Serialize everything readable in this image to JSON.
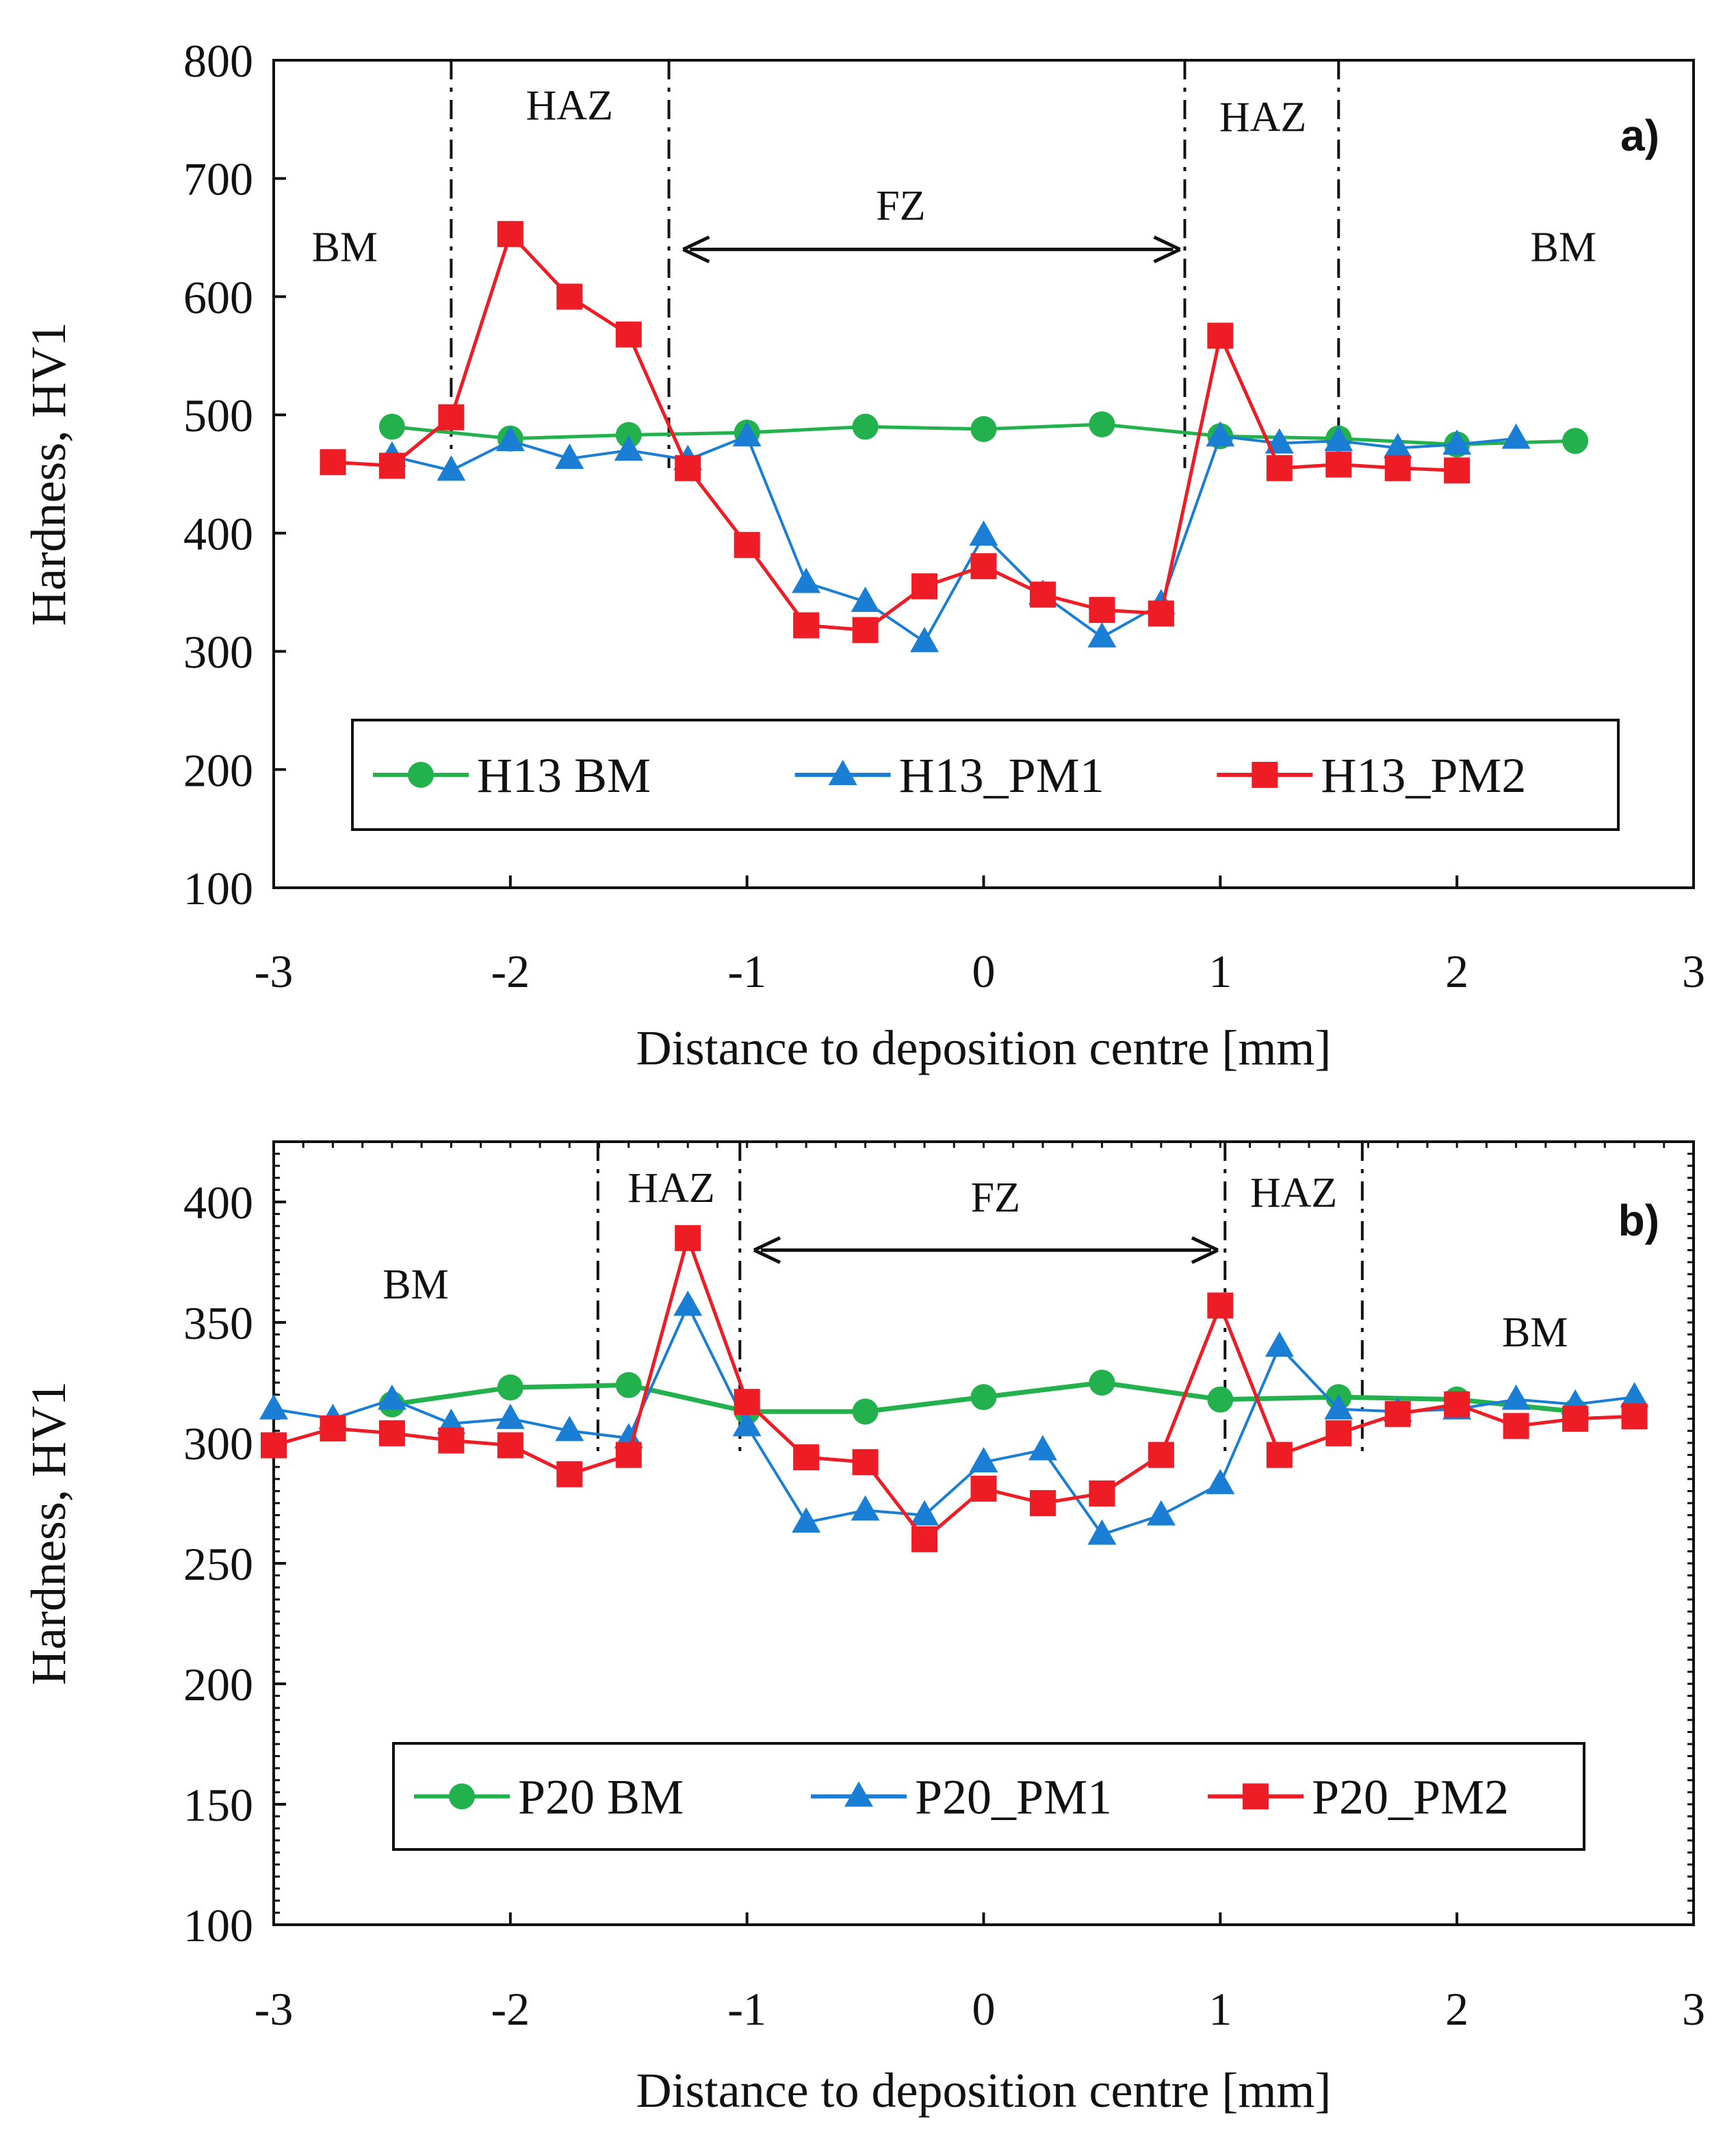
{
  "chart_data": [
    {
      "type": "line",
      "panel_label": "a)",
      "xlabel": "Distance to deposition centre [mm]",
      "ylabel": "Hardness, HV1",
      "xlim": [
        -3,
        3
      ],
      "ylim": [
        100,
        800
      ],
      "xticks": [
        -3,
        -2,
        -1,
        0,
        1,
        2,
        3
      ],
      "yticks": [
        100,
        200,
        300,
        400,
        500,
        600,
        700,
        800
      ],
      "x_tick_labels": [
        "-3",
        "-2",
        "-1",
        "0",
        "1",
        "2",
        "3"
      ],
      "y_tick_labels": [
        "100",
        "200",
        "300",
        "400",
        "500",
        "600",
        "700",
        "800"
      ],
      "zone_boundaries": [
        -2.25,
        -1.33,
        0.85,
        1.5
      ],
      "zone_labels": [
        {
          "text": "BM",
          "x": -2.7,
          "y": 630
        },
        {
          "text": "HAZ",
          "x": -1.75,
          "y": 750
        },
        {
          "text": "FZ",
          "x": -0.35,
          "y": 665
        },
        {
          "text": "HAZ",
          "x": 1.18,
          "y": 740
        },
        {
          "text": "BM",
          "x": 2.45,
          "y": 630
        }
      ],
      "fz_arrow": {
        "x1": -1.27,
        "x2": 0.83,
        "y": 640
      },
      "legend_position": "bottom-center",
      "series": [
        {
          "name": "H13 BM",
          "color": "#22b14c",
          "marker": "circle",
          "x": [
            -2.5,
            -2.0,
            -1.5,
            -1.0,
            -0.5,
            0.0,
            0.5,
            1.0,
            1.5,
            2.0,
            2.5
          ],
          "y": [
            490,
            480,
            483,
            485,
            490,
            488,
            492,
            482,
            480,
            475,
            478
          ]
        },
        {
          "name": "H13_PM1",
          "color": "#1a7fd4",
          "marker": "triangle",
          "x": [
            -2.5,
            -2.25,
            -2.0,
            -1.75,
            -1.5,
            -1.25,
            -1.0,
            -0.75,
            -0.5,
            -0.25,
            0.0,
            0.25,
            0.5,
            0.75,
            1.0,
            1.25,
            1.5,
            1.75,
            2.0,
            2.25
          ],
          "y": [
            465,
            453,
            478,
            463,
            470,
            462,
            482,
            358,
            342,
            308,
            398,
            348,
            312,
            340,
            482,
            476,
            478,
            472,
            475,
            480
          ]
        },
        {
          "name": "H13_PM2",
          "color": "#ee1c24",
          "marker": "square",
          "x": [
            -2.75,
            -2.5,
            -2.25,
            -2.0,
            -1.75,
            -1.5,
            -1.25,
            -1.0,
            -0.75,
            -0.5,
            -0.25,
            0.0,
            0.25,
            0.5,
            0.75,
            1.0,
            1.25,
            1.5,
            1.75,
            2.0
          ],
          "y": [
            460,
            457,
            498,
            653,
            600,
            568,
            455,
            390,
            322,
            318,
            355,
            372,
            348,
            335,
            332,
            567,
            455,
            458,
            455,
            453
          ]
        }
      ]
    },
    {
      "type": "line",
      "panel_label": "b)",
      "xlabel": "Distance to deposition centre [mm]",
      "ylabel": "Hardness, HV1",
      "xlim": [
        -3,
        3
      ],
      "ylim": [
        100,
        425
      ],
      "xticks": [
        -3,
        -2,
        -1,
        0,
        1,
        2,
        3
      ],
      "yticks": [
        100,
        150,
        200,
        250,
        300,
        350,
        400
      ],
      "x_tick_labels": [
        "-3",
        "-2",
        "-1",
        "0",
        "1",
        "2",
        "3"
      ],
      "y_tick_labels": [
        "100",
        "150",
        "200",
        "250",
        "300",
        "350",
        "400"
      ],
      "zone_boundaries": [
        -1.63,
        -1.03,
        1.02,
        1.6
      ],
      "zone_labels": [
        {
          "text": "BM",
          "x": -2.4,
          "y": 360
        },
        {
          "text": "HAZ",
          "x": -1.32,
          "y": 400
        },
        {
          "text": "FZ",
          "x": 0.05,
          "y": 396
        },
        {
          "text": "HAZ",
          "x": 1.31,
          "y": 398
        },
        {
          "text": "BM",
          "x": 2.33,
          "y": 340
        }
      ],
      "fz_arrow": {
        "x1": -0.97,
        "x2": 0.99,
        "y": 380
      },
      "legend_position": "bottom-center",
      "series": [
        {
          "name": "P20 BM",
          "color": "#22b14c",
          "marker": "circle",
          "x": [
            -2.5,
            -2.0,
            -1.5,
            -1.0,
            -0.5,
            0.0,
            0.5,
            1.0,
            1.5,
            2.0,
            2.5
          ],
          "y": [
            316,
            323,
            324,
            313,
            313,
            319,
            325,
            318,
            319,
            318,
            313
          ]
        },
        {
          "name": "P20_PM1",
          "color": "#1a7fd4",
          "marker": "triangle",
          "x": [
            -3.0,
            -2.75,
            -2.5,
            -2.25,
            -2.0,
            -1.75,
            -1.5,
            -1.25,
            -1.0,
            -0.75,
            -0.5,
            -0.25,
            0.0,
            0.25,
            0.5,
            0.75,
            1.0,
            1.25,
            1.5,
            1.75,
            2.0,
            2.25,
            2.5,
            2.75
          ],
          "y": [
            314,
            310,
            318,
            308,
            310,
            305,
            302,
            357,
            307,
            267,
            272,
            270,
            292,
            297,
            262,
            270,
            283,
            340,
            314,
            313,
            314,
            318,
            316,
            319
          ]
        },
        {
          "name": "P20_PM2",
          "color": "#ee1c24",
          "marker": "square",
          "x": [
            -3.0,
            -2.75,
            -2.5,
            -2.25,
            -2.0,
            -1.75,
            -1.5,
            -1.25,
            -1.0,
            -0.75,
            -0.5,
            -0.25,
            0.0,
            0.25,
            0.5,
            0.75,
            1.0,
            1.25,
            1.5,
            1.75,
            2.0,
            2.25,
            2.5,
            2.75
          ],
          "y": [
            299,
            306,
            304,
            301,
            299,
            287,
            295,
            385,
            317,
            294,
            292,
            260,
            281,
            275,
            279,
            295,
            357,
            295,
            304,
            312,
            316,
            307,
            310,
            311
          ]
        }
      ]
    }
  ]
}
